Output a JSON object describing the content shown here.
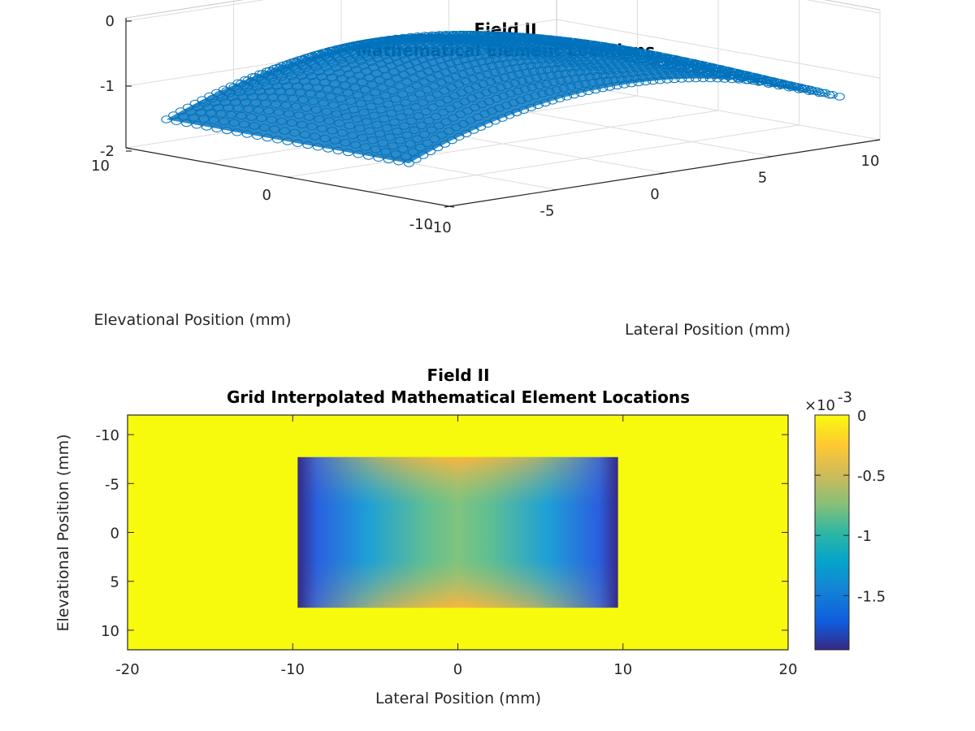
{
  "figure": {
    "background": "#ffffff"
  },
  "chart_data": [
    {
      "type": "scatter",
      "projection": "3d",
      "title": [
        "Field II",
        "Mathematical Element Locations"
      ],
      "xlabel": "Lateral Position (mm)",
      "ylabel": "Elevational Position (mm)",
      "zlabel": "",
      "xlim": [
        -10,
        10
      ],
      "ylim": [
        -10,
        10
      ],
      "zlim": [
        -2,
        0
      ],
      "xticks": [
        "-10",
        "-5",
        "0",
        "5",
        "10"
      ],
      "yticks": [
        "-10",
        "0",
        "10"
      ],
      "zticks": [
        "0",
        "-1",
        "-2"
      ],
      "grid": true,
      "marker": "circle",
      "color": "#0072BD",
      "surface": {
        "lateral_range_mm": [
          -10,
          10
        ],
        "elevational_range_mm": [
          -7.5,
          7.5
        ],
        "z_at_lateral_edges": -1.4,
        "z_at_center": -0.7,
        "z_peak": -0.2
      }
    },
    {
      "type": "heatmap",
      "title": [
        "Field II",
        "Grid Interpolated Mathematical Element Locations"
      ],
      "xlabel": "Lateral Position (mm)",
      "ylabel": "Elevational Position (mm)",
      "xlim": [
        -20,
        20
      ],
      "ylim": [
        -12,
        12
      ],
      "xticks": [
        "-20",
        "-10",
        "0",
        "10",
        "20"
      ],
      "yticks": [
        "-10",
        "-5",
        "0",
        "5",
        "10"
      ],
      "data_region": {
        "x": [
          -9.7,
          9.7
        ],
        "y": [
          -7.7,
          7.7
        ]
      },
      "background_value": 0,
      "colorbar": {
        "exponent_label": "×10",
        "exponent": "-3",
        "range": [
          -1.95,
          0
        ],
        "ticks": [
          {
            "value": 0,
            "label": "0"
          },
          {
            "value": -0.5,
            "label": "-0.5"
          },
          {
            "value": -1,
            "label": "-1"
          },
          {
            "value": -1.5,
            "label": "-1.5"
          }
        ],
        "colormap": "parula"
      }
    }
  ]
}
